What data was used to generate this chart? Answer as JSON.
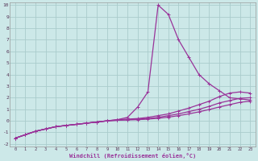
{
  "background_color": "#cce8e8",
  "grid_color": "#aacccc",
  "line_color": "#993399",
  "xlabel": "Windchill (Refroidissement éolien,°C)",
  "xlim": [
    -0.5,
    23.5
  ],
  "ylim": [
    -2.2,
    10.2
  ],
  "yticks": [
    -2,
    -1,
    0,
    1,
    2,
    3,
    4,
    5,
    6,
    7,
    8,
    9,
    10
  ],
  "xticks": [
    0,
    1,
    2,
    3,
    4,
    5,
    6,
    7,
    8,
    9,
    10,
    11,
    12,
    13,
    14,
    15,
    16,
    17,
    18,
    19,
    20,
    21,
    22,
    23
  ],
  "series1_x": [
    0,
    1,
    2,
    3,
    4,
    5,
    6,
    7,
    8,
    9,
    10,
    11,
    12,
    13,
    14,
    15,
    16,
    17,
    18,
    19,
    20,
    21,
    22,
    23
  ],
  "series1_y": [
    -1.5,
    -1.2,
    -0.9,
    -0.7,
    -0.5,
    -0.4,
    -0.3,
    -0.2,
    -0.1,
    0.0,
    0.1,
    0.3,
    1.2,
    2.5,
    10.0,
    9.2,
    7.0,
    5.5,
    4.0,
    3.2,
    2.6,
    2.0,
    1.9,
    1.8
  ],
  "series2_x": [
    0,
    1,
    2,
    3,
    4,
    5,
    6,
    7,
    8,
    9,
    10,
    11,
    12,
    13,
    14,
    15,
    16,
    17,
    18,
    19,
    20,
    21,
    22,
    23
  ],
  "series2_y": [
    -1.5,
    -1.2,
    -0.9,
    -0.7,
    -0.5,
    -0.4,
    -0.3,
    -0.2,
    -0.1,
    0.0,
    0.1,
    0.15,
    0.2,
    0.3,
    0.45,
    0.6,
    0.85,
    1.1,
    1.4,
    1.7,
    2.1,
    2.4,
    2.5,
    2.4
  ],
  "series3_x": [
    0,
    1,
    2,
    3,
    4,
    5,
    6,
    7,
    8,
    9,
    10,
    11,
    12,
    13,
    14,
    15,
    16,
    17,
    18,
    19,
    20,
    21,
    22,
    23
  ],
  "series3_y": [
    -1.5,
    -1.2,
    -0.9,
    -0.7,
    -0.5,
    -0.4,
    -0.3,
    -0.2,
    -0.1,
    0.0,
    0.05,
    0.1,
    0.15,
    0.2,
    0.3,
    0.45,
    0.6,
    0.8,
    1.0,
    1.25,
    1.55,
    1.75,
    1.95,
    2.0
  ],
  "series4_x": [
    0,
    1,
    2,
    3,
    4,
    5,
    6,
    7,
    8,
    9,
    10,
    11,
    12,
    13,
    14,
    15,
    16,
    17,
    18,
    19,
    20,
    21,
    22,
    23
  ],
  "series4_y": [
    -1.5,
    -1.2,
    -0.9,
    -0.7,
    -0.5,
    -0.4,
    -0.3,
    -0.2,
    -0.1,
    0.0,
    0.05,
    0.08,
    0.1,
    0.15,
    0.22,
    0.32,
    0.45,
    0.6,
    0.78,
    0.98,
    1.2,
    1.4,
    1.6,
    1.7
  ]
}
